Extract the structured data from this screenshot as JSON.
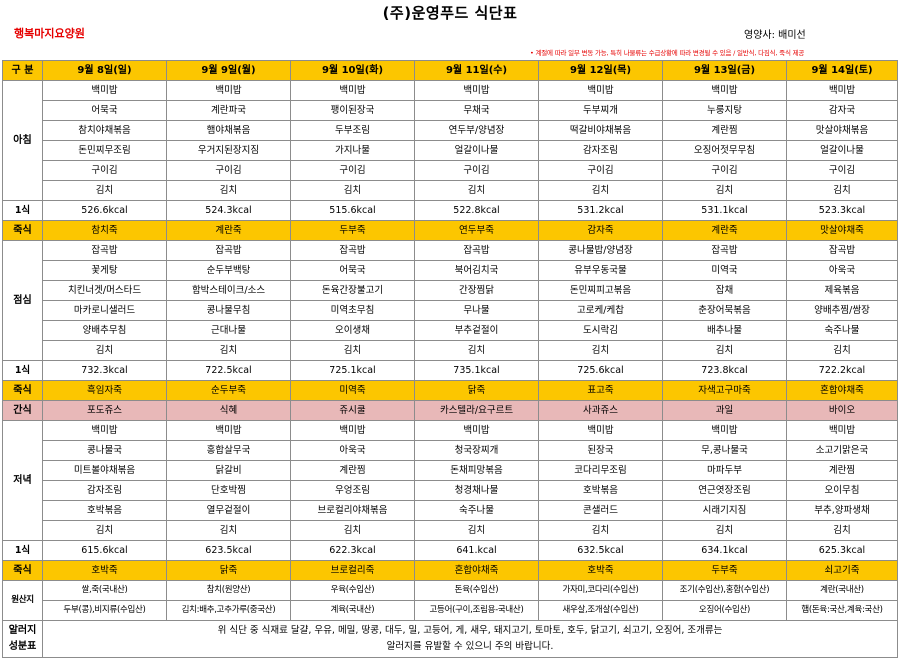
{
  "title": "(주)운영푸드 식단표",
  "org": "행복마지요양원",
  "nutritionist": "영양사: 배미선",
  "notice": "• 계절에 따라 일부 변동 가능, 특히 나물류는 수급상황에 따라 변경될 수 있음 / 일반식, 다짐식, 죽식 제공",
  "header": {
    "category": "구 분",
    "days": [
      "9월 8일(일)",
      "9월 9일(월)",
      "9월 10일(화)",
      "9월 11일(수)",
      "9월 12일(목)",
      "9월 13일(금)",
      "9월 14일(토)"
    ]
  },
  "breakfast": {
    "label": "아침",
    "rows": [
      [
        "백미밥",
        "백미밥",
        "백미밥",
        "백미밥",
        "백미밥",
        "백미밥",
        "백미밥"
      ],
      [
        "어묵국",
        "계란파국",
        "팽이된장국",
        "무채국",
        "두부찌개",
        "누룽지탕",
        "감자국"
      ],
      [
        "참치야채볶음",
        "햄야채볶음",
        "두부조림",
        "연두부/양념장",
        "떡갈비야채볶음",
        "계란찜",
        "맛살야채볶음"
      ],
      [
        "돈민찌무조림",
        "우거지된장지짐",
        "가지나물",
        "얼갈이나물",
        "감자조림",
        "오징어젓무무침",
        "얼갈이나물"
      ],
      [
        "구이김",
        "구이김",
        "구이김",
        "구이김",
        "구이김",
        "구이김",
        "구이김"
      ],
      [
        "김치",
        "김치",
        "김치",
        "김치",
        "김치",
        "김치",
        "김치"
      ]
    ],
    "kcal_label": "1식",
    "kcal": [
      "526.6kcal",
      "524.3kcal",
      "515.6kcal",
      "522.8kcal",
      "531.2kcal",
      "531.1kcal",
      "523.3kcal"
    ],
    "porridge_label": "죽식",
    "porridge": [
      "참치죽",
      "계란죽",
      "두부죽",
      "연두부죽",
      "감자죽",
      "계란죽",
      "맛살야채죽"
    ]
  },
  "lunch": {
    "label": "점심",
    "rows": [
      [
        "잡곡밥",
        "잡곡밥",
        "잡곡밥",
        "잡곡밥",
        "콩나물밥/양념장",
        "잡곡밥",
        "잡곡밥"
      ],
      [
        "꽃게탕",
        "순두부백탕",
        "어묵국",
        "북어김치국",
        "유부우동국물",
        "미역국",
        "아욱국"
      ],
      [
        "치킨너겟/머스타드",
        "함박스테이크/소스",
        "돈육간장불고기",
        "간장찜닭",
        "돈민찌피고볶음",
        "잡채",
        "제육볶음"
      ],
      [
        "마카로니샐러드",
        "콩나물무침",
        "미역초무침",
        "무나물",
        "고로케/케찹",
        "춘장어묵볶음",
        "양배추찜/쌈장"
      ],
      [
        "양배추무침",
        "근대나물",
        "오이생채",
        "부추겉절이",
        "도시락김",
        "배추나물",
        "숙주나물"
      ],
      [
        "김치",
        "김치",
        "김치",
        "김치",
        "김치",
        "김치",
        "김치"
      ]
    ],
    "kcal_label": "1식",
    "kcal": [
      "732.3kcal",
      "722.5kcal",
      "725.1kcal",
      "735.1kcal",
      "725.6kcal",
      "723.8kcal",
      "722.2kcal"
    ],
    "porridge_label": "죽식",
    "porridge": [
      "흑임자죽",
      "순두부죽",
      "미역죽",
      "닭죽",
      "표고죽",
      "자색고구마죽",
      "혼합야채죽"
    ]
  },
  "snack": {
    "label": "간식",
    "items": [
      "포도쥬스",
      "식혜",
      "쥬시쿨",
      "카스텔라/요구르트",
      "사과쥬스",
      "과일",
      "바이오"
    ]
  },
  "dinner": {
    "label": "저녁",
    "rows": [
      [
        "백미밥",
        "백미밥",
        "백미밥",
        "백미밥",
        "백미밥",
        "백미밥",
        "백미밥"
      ],
      [
        "콩나물국",
        "홍합살무국",
        "아욱국",
        "청국장찌개",
        "된장국",
        "무,콩나물국",
        "소고기맑은국"
      ],
      [
        "미트볼야채볶음",
        "닭갈비",
        "계란찜",
        "돈채피망볶음",
        "코다리무조림",
        "마파두부",
        "계란찜"
      ],
      [
        "감자조림",
        "단호박찜",
        "우엉조림",
        "청경채나물",
        "호박볶음",
        "연근엿장조림",
        "오이무침"
      ],
      [
        "호박볶음",
        "열무겉절이",
        "브로컬리야채볶음",
        "숙주나물",
        "콘샐러드",
        "시래기지짐",
        "부추,양파생채"
      ],
      [
        "김치",
        "김치",
        "김치",
        "김치",
        "김치",
        "김치",
        "김치"
      ]
    ],
    "kcal_label": "1식",
    "kcal": [
      "615.6kcal",
      "623.5kcal",
      "622.3kcal",
      "641.kcal",
      "632.5kcal",
      "634.1kcal",
      "625.3kcal"
    ],
    "porridge_label": "죽식",
    "porridge": [
      "호박죽",
      "닭죽",
      "브로컬리죽",
      "혼합야채죽",
      "호박죽",
      "두부죽",
      "쇠고기죽"
    ]
  },
  "origin": {
    "label": "원산지",
    "row1": [
      "쌀,죽(국내산)",
      "참치(원양산)",
      "우육(수입산)",
      "돈육(수입산)",
      "가자미,코다리(수입산)",
      "조기(수입산),홍합(수입산)",
      "계란(국내산)"
    ],
    "row2": [
      "두부(콩),비지류(수입산)",
      "김치:배추,고추가루(중국산)",
      "계육(국내산)",
      "고등어(구이,조림용-국내산)",
      "새우살,조개살(수입산)",
      "오징어(수입산)",
      "햄(돈육:국산,계육:국산)"
    ]
  },
  "allergy": {
    "label": "알러지\n성분표",
    "label_line1": "알러지",
    "label_line2": "성분표",
    "line1": "위 식단 중 식재료 달걀, 우유, 메밀, 땅콩, 대두, 밀, 고등어, 게, 새우, 돼지고기, 토마토, 호두, 닭고기, 쇠고기, 오징어, 조개류는",
    "line2": "알러지를 유발할 수 있으니 주의 바랍니다."
  },
  "colors": {
    "header_bg": "#fcc600",
    "porridge_bg": "#fcc600",
    "snack_bg": "#e8b8b8",
    "title_red": "#e60000"
  }
}
